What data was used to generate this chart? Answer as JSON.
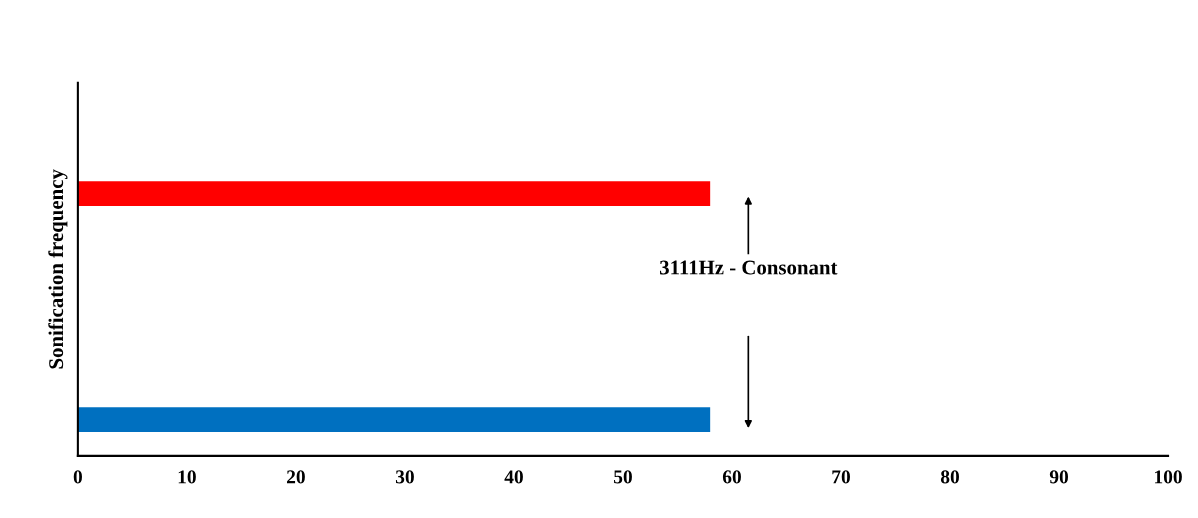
{
  "chart_data": {
    "type": "bar",
    "orientation": "horizontal",
    "ylabel": "Sonification frequency",
    "categories": [
      null,
      null
    ],
    "values": [
      58,
      58
    ],
    "colors": [
      "#ff0000",
      "#0070c0"
    ],
    "xlim": [
      0,
      100
    ],
    "xticks": [
      0,
      10,
      20,
      30,
      40,
      50,
      60,
      70,
      80,
      90,
      100
    ],
    "annotations": [
      "3111Hz - Consonant"
    ],
    "grid": false,
    "legend": false
  }
}
